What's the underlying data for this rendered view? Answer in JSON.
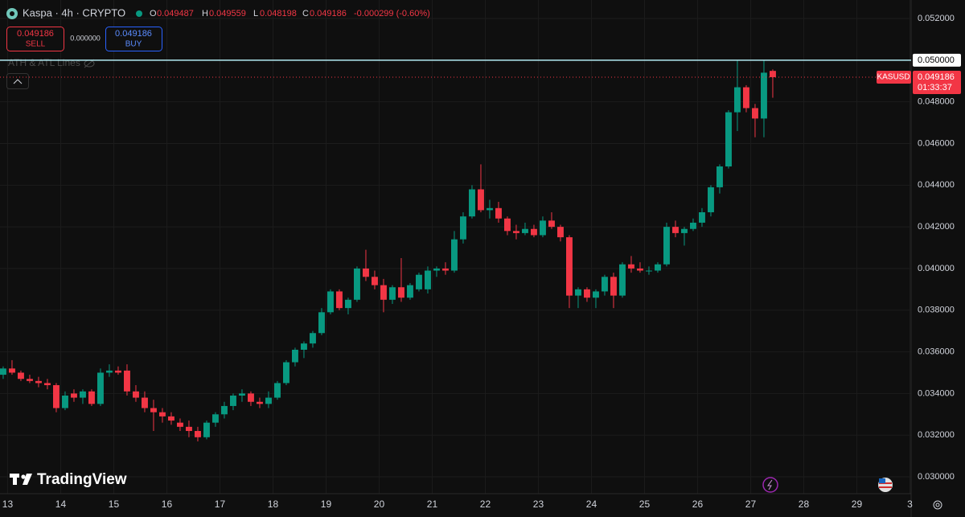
{
  "toolbar": {
    "symbol": "Kaspa · 4h · CRYPTO",
    "o_label": "O",
    "o": "0.049487",
    "h_label": "H",
    "h": "0.049559",
    "l_label": "L",
    "l": "0.048198",
    "c_label": "C",
    "c": "0.049186",
    "change": "-0.000299 (-0.60%)",
    "sell_price": "0.049186",
    "sell": "SELL",
    "spread": "0.000000",
    "buy_price": "0.049186",
    "buy": "BUY",
    "indicator": "ATH & ATL Lines",
    "brand": "TradingView"
  },
  "chart_data": {
    "type": "candlestick",
    "title": "Kaspa · 4h · CRYPTO",
    "symbol_label": "KASUSD",
    "countdown": "01:33:37",
    "up_color": "#089981",
    "down_color": "#f23645",
    "grid": true,
    "ylim": [
      0.02919,
      0.05289
    ],
    "yticks": [
      {
        "value": 0.052,
        "label": "0.052000"
      },
      {
        "value": 0.05,
        "label": "0.050000"
      },
      {
        "value": 0.048,
        "label": "0.048000"
      },
      {
        "value": 0.046,
        "label": "0.046000"
      },
      {
        "value": 0.044,
        "label": "0.044000"
      },
      {
        "value": 0.042,
        "label": "0.042000"
      },
      {
        "value": 0.04,
        "label": "0.040000"
      },
      {
        "value": 0.038,
        "label": "0.038000"
      },
      {
        "value": 0.036,
        "label": "0.036000"
      },
      {
        "value": 0.034,
        "label": "0.034000"
      },
      {
        "value": 0.032,
        "label": "0.032000"
      },
      {
        "value": 0.03,
        "label": "0.030000"
      }
    ],
    "xlim": [
      -0.36,
      102.64
    ],
    "xticks": [
      {
        "value": 0.5,
        "label": "13"
      },
      {
        "value": 6.5,
        "label": "14"
      },
      {
        "value": 12.5,
        "label": "15"
      },
      {
        "value": 18.5,
        "label": "16"
      },
      {
        "value": 24.5,
        "label": "17"
      },
      {
        "value": 30.5,
        "label": "18"
      },
      {
        "value": 36.5,
        "label": "19"
      },
      {
        "value": 42.5,
        "label": "20"
      },
      {
        "value": 48.5,
        "label": "21"
      },
      {
        "value": 54.5,
        "label": "22"
      },
      {
        "value": 60.5,
        "label": "23"
      },
      {
        "value": 66.5,
        "label": "24"
      },
      {
        "value": 72.5,
        "label": "25"
      },
      {
        "value": 78.5,
        "label": "26"
      },
      {
        "value": 84.5,
        "label": "27"
      },
      {
        "value": 90.5,
        "label": "28"
      },
      {
        "value": 96.5,
        "label": "29"
      },
      {
        "value": 102.5,
        "label": "3"
      }
    ],
    "hlines": [
      {
        "value": 0.05,
        "label": "0.050000",
        "color": "#b2ebf2"
      }
    ],
    "open": [
      0.0349,
      0.0352,
      0.035,
      0.0347,
      0.0346,
      0.0345,
      0.0344,
      0.0333,
      0.034,
      0.0338,
      0.0341,
      0.0335,
      0.035,
      0.0351,
      0.0351,
      0.0341,
      0.0338,
      0.0333,
      0.0331,
      0.0329,
      0.0326,
      0.0324,
      0.0322,
      0.0319,
      0.0326,
      0.033,
      0.0334,
      0.0339,
      0.034,
      0.0336,
      0.0335,
      0.0338,
      0.0345,
      0.0355,
      0.0361,
      0.0364,
      0.0369,
      0.0379,
      0.0389,
      0.0381,
      0.0385,
      0.04,
      0.0396,
      0.0392,
      0.0385,
      0.0391,
      0.0386,
      0.039,
      0.039,
      0.0399,
      0.04,
      0.0399,
      0.0414,
      0.0425,
      0.0438,
      0.0428,
      0.0429,
      0.0424,
      0.0418,
      0.0417,
      0.0419,
      0.0416,
      0.0423,
      0.042,
      0.0415,
      0.0387,
      0.039,
      0.0386,
      0.0389,
      0.0396,
      0.0387,
      0.0402,
      0.04,
      0.0399,
      0.0399,
      0.0402,
      0.042,
      0.0417,
      0.0419,
      0.0422,
      0.0427,
      0.0439,
      0.0449,
      0.0475,
      0.0487,
      0.0477,
      0.0472,
      0.049487
    ],
    "high": [
      0.0353,
      0.0356,
      0.0351,
      0.0349,
      0.0348,
      0.0347,
      0.0345,
      0.0341,
      0.0342,
      0.0342,
      0.0342,
      0.0352,
      0.0354,
      0.0353,
      0.0354,
      0.0344,
      0.0341,
      0.0337,
      0.0333,
      0.0331,
      0.0328,
      0.0327,
      0.0324,
      0.0327,
      0.0331,
      0.0336,
      0.034,
      0.0342,
      0.0341,
      0.0338,
      0.0341,
      0.0346,
      0.0356,
      0.0362,
      0.0365,
      0.037,
      0.0381,
      0.039,
      0.039,
      0.0386,
      0.0401,
      0.0409,
      0.0399,
      0.0395,
      0.0392,
      0.0405,
      0.0393,
      0.0398,
      0.0401,
      0.0401,
      0.0403,
      0.0418,
      0.0427,
      0.044,
      0.045,
      0.0433,
      0.0432,
      0.0425,
      0.0421,
      0.0422,
      0.0421,
      0.0425,
      0.0427,
      0.0421,
      0.0416,
      0.0391,
      0.0391,
      0.039,
      0.0397,
      0.0398,
      0.0403,
      0.0406,
      0.0403,
      0.0401,
      0.0403,
      0.0422,
      0.0423,
      0.042,
      0.0424,
      0.0429,
      0.044,
      0.045,
      0.0476,
      0.05,
      0.0488,
      0.0479,
      0.05,
      0.049559
    ],
    "low": [
      0.0347,
      0.0349,
      0.0346,
      0.0345,
      0.0343,
      0.0342,
      0.0331,
      0.0332,
      0.0336,
      0.0335,
      0.0334,
      0.0334,
      0.0348,
      0.0349,
      0.0339,
      0.0336,
      0.0331,
      0.0322,
      0.0326,
      0.0325,
      0.0322,
      0.0319,
      0.0317,
      0.0318,
      0.0324,
      0.0328,
      0.0332,
      0.0336,
      0.0334,
      0.0333,
      0.0333,
      0.0337,
      0.0344,
      0.0353,
      0.0357,
      0.0362,
      0.0368,
      0.0378,
      0.038,
      0.0378,
      0.0384,
      0.0394,
      0.039,
      0.0379,
      0.0383,
      0.0384,
      0.0385,
      0.0389,
      0.0388,
      0.0396,
      0.0397,
      0.0398,
      0.0412,
      0.0424,
      0.0427,
      0.0424,
      0.0422,
      0.0416,
      0.0414,
      0.0416,
      0.0415,
      0.0415,
      0.0419,
      0.0413,
      0.0381,
      0.0381,
      0.0384,
      0.0381,
      0.0387,
      0.0381,
      0.0386,
      0.0398,
      0.0398,
      0.0397,
      0.0398,
      0.0401,
      0.0415,
      0.0411,
      0.0418,
      0.042,
      0.0425,
      0.0436,
      0.0448,
      0.0466,
      0.0475,
      0.0463,
      0.0463,
      0.048198
    ],
    "close": [
      0.0352,
      0.035,
      0.0347,
      0.0346,
      0.0345,
      0.0344,
      0.0333,
      0.0339,
      0.0338,
      0.0341,
      0.0335,
      0.035,
      0.0351,
      0.035,
      0.0341,
      0.0338,
      0.0333,
      0.0331,
      0.0329,
      0.0327,
      0.0324,
      0.0322,
      0.0319,
      0.0326,
      0.033,
      0.0334,
      0.0339,
      0.034,
      0.0336,
      0.0335,
      0.0338,
      0.0345,
      0.0355,
      0.0361,
      0.0364,
      0.0369,
      0.0379,
      0.0389,
      0.0381,
      0.0385,
      0.04,
      0.0396,
      0.0392,
      0.0385,
      0.0391,
      0.0386,
      0.0392,
      0.0397,
      0.0399,
      0.04,
      0.0399,
      0.0414,
      0.0425,
      0.0438,
      0.0428,
      0.0429,
      0.0424,
      0.0418,
      0.0417,
      0.0419,
      0.0416,
      0.0423,
      0.042,
      0.0415,
      0.0387,
      0.039,
      0.0386,
      0.0389,
      0.0396,
      0.0387,
      0.0402,
      0.04,
      0.0399,
      0.0399,
      0.0402,
      0.042,
      0.0417,
      0.0419,
      0.0422,
      0.0427,
      0.0439,
      0.0449,
      0.0475,
      0.0487,
      0.0477,
      0.0472,
      0.0494,
      0.049186
    ]
  }
}
